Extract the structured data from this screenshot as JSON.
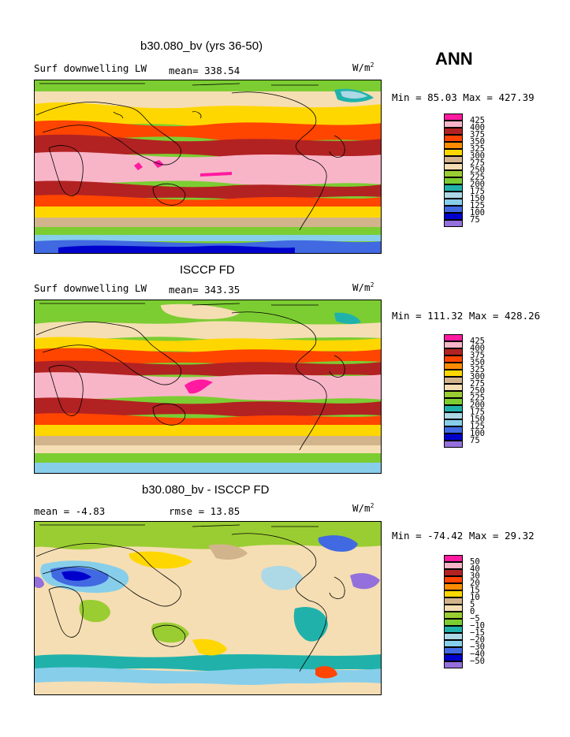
{
  "season": "ANN",
  "panels": [
    {
      "title": "b30.080_bv (yrs 36-50)",
      "left_label": "Surf downwelling LW",
      "center_label": "mean= 338.54",
      "units_base": "W/m",
      "units_exp": "2",
      "minmax": "Min =  85.03 Max = 427.39",
      "colors": [
        "#ff1aa0",
        "#f8b5c8",
        "#b22222",
        "#ff4500",
        "#ff8c00",
        "#ffd700",
        "#d2b48c",
        "#f5deb3",
        "#9acd32",
        "#7ccd32",
        "#20b2aa",
        "#add8e6",
        "#87ceeb",
        "#4169e1",
        "#0000cd",
        "#9370db"
      ],
      "levels": [
        "425",
        "400",
        "375",
        "350",
        "325",
        "300",
        "275",
        "250",
        "225",
        "200",
        "175",
        "150",
        "125",
        "100",
        "75"
      ]
    },
    {
      "title": "ISCCP FD",
      "left_label": "Surf downwelling LW",
      "center_label": "mean= 343.35",
      "units_base": "W/m",
      "units_exp": "2",
      "minmax": "Min = 111.32 Max = 428.26",
      "colors": [
        "#ff1aa0",
        "#f8b5c8",
        "#b22222",
        "#ff4500",
        "#ff8c00",
        "#ffd700",
        "#d2b48c",
        "#f5deb3",
        "#9acd32",
        "#7ccd32",
        "#20b2aa",
        "#add8e6",
        "#87ceeb",
        "#4169e1",
        "#0000cd",
        "#9370db"
      ],
      "levels": [
        "425",
        "400",
        "375",
        "350",
        "325",
        "300",
        "275",
        "250",
        "225",
        "200",
        "175",
        "150",
        "125",
        "100",
        "75"
      ]
    },
    {
      "title": "b30.080_bv - ISCCP FD",
      "left_label": "mean =  -4.83",
      "center_label": "rmse =  13.85",
      "units_base": "W/m",
      "units_exp": "2",
      "minmax": "Min = -74.42 Max =  29.32",
      "colors": [
        "#ff1aa0",
        "#f8b5c8",
        "#b22222",
        "#ff4500",
        "#ff8c00",
        "#ffd700",
        "#d2b48c",
        "#f5deb3",
        "#9acd32",
        "#7ccd32",
        "#20b2aa",
        "#add8e6",
        "#87ceeb",
        "#4169e1",
        "#0000cd",
        "#9370db"
      ],
      "levels": [
        "50",
        "40",
        "30",
        "20",
        "15",
        "10",
        "5",
        "0",
        "−5",
        "−10",
        "−15",
        "−20",
        "−30",
        "−40",
        "−50"
      ]
    }
  ]
}
